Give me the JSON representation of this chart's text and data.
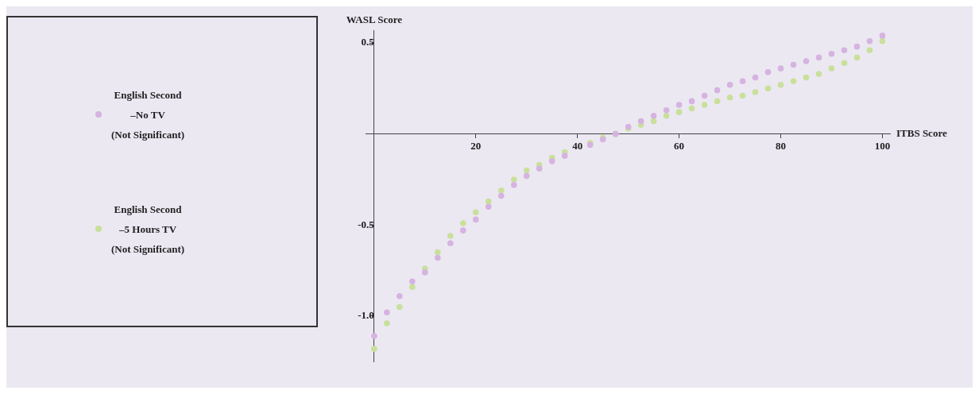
{
  "chart_data": {
    "type": "scatter",
    "xlabel": "ITBS Score",
    "ylabel": "WASL Score",
    "xlim": [
      -1.7,
      101.5
    ],
    "ylim": [
      -1.25,
      0.57
    ],
    "xticks": [
      20,
      40,
      60,
      80,
      100
    ],
    "yticks": [
      {
        "value": -1,
        "label": "-1.0"
      },
      {
        "value": -0.5,
        "label": "-0.5"
      },
      0.5
    ],
    "grid": false,
    "legend": "left",
    "marker": "circle",
    "x": [
      0,
      2.5,
      5,
      7.5,
      10,
      12.5,
      15,
      17.5,
      20,
      22.5,
      25,
      27.5,
      30,
      32.5,
      35,
      37.5,
      42.5,
      45,
      47.5,
      50,
      52.5,
      55,
      57.5,
      60,
      62.5,
      65,
      67.5,
      70,
      72.5,
      75,
      77.5,
      80,
      82.5,
      85,
      87.5,
      90,
      92.5,
      95,
      97.5,
      100
    ],
    "series": [
      {
        "name": "English Second\n–No TV\n(Not Significant)",
        "color": "#d6b3e0",
        "values": [
          -1.11,
          -0.98,
          -0.89,
          -0.81,
          -0.76,
          -0.68,
          -0.6,
          -0.53,
          -0.47,
          -0.4,
          -0.34,
          -0.28,
          -0.23,
          -0.19,
          -0.15,
          -0.12,
          -0.06,
          -0.03,
          0,
          0.04,
          0.07,
          0.1,
          0.13,
          0.16,
          0.18,
          0.21,
          0.24,
          0.27,
          0.29,
          0.31,
          0.34,
          0.36,
          0.38,
          0.4,
          0.42,
          0.44,
          0.46,
          0.48,
          0.51,
          0.54
        ]
      },
      {
        "name": "English Second\n–5 Hours TV\n(Not Significant)",
        "color": "#c9e09b",
        "values": [
          -1.18,
          -1.04,
          -0.95,
          -0.84,
          -0.74,
          -0.65,
          -0.56,
          -0.49,
          -0.43,
          -0.37,
          -0.31,
          -0.25,
          -0.2,
          -0.17,
          -0.13,
          -0.1,
          -0.05,
          -0.02,
          0,
          0.03,
          0.05,
          0.07,
          0.1,
          0.12,
          0.14,
          0.16,
          0.18,
          0.2,
          0.21,
          0.23,
          0.25,
          0.27,
          0.29,
          0.31,
          0.33,
          0.36,
          0.39,
          0.42,
          0.46,
          0.51
        ]
      }
    ]
  }
}
